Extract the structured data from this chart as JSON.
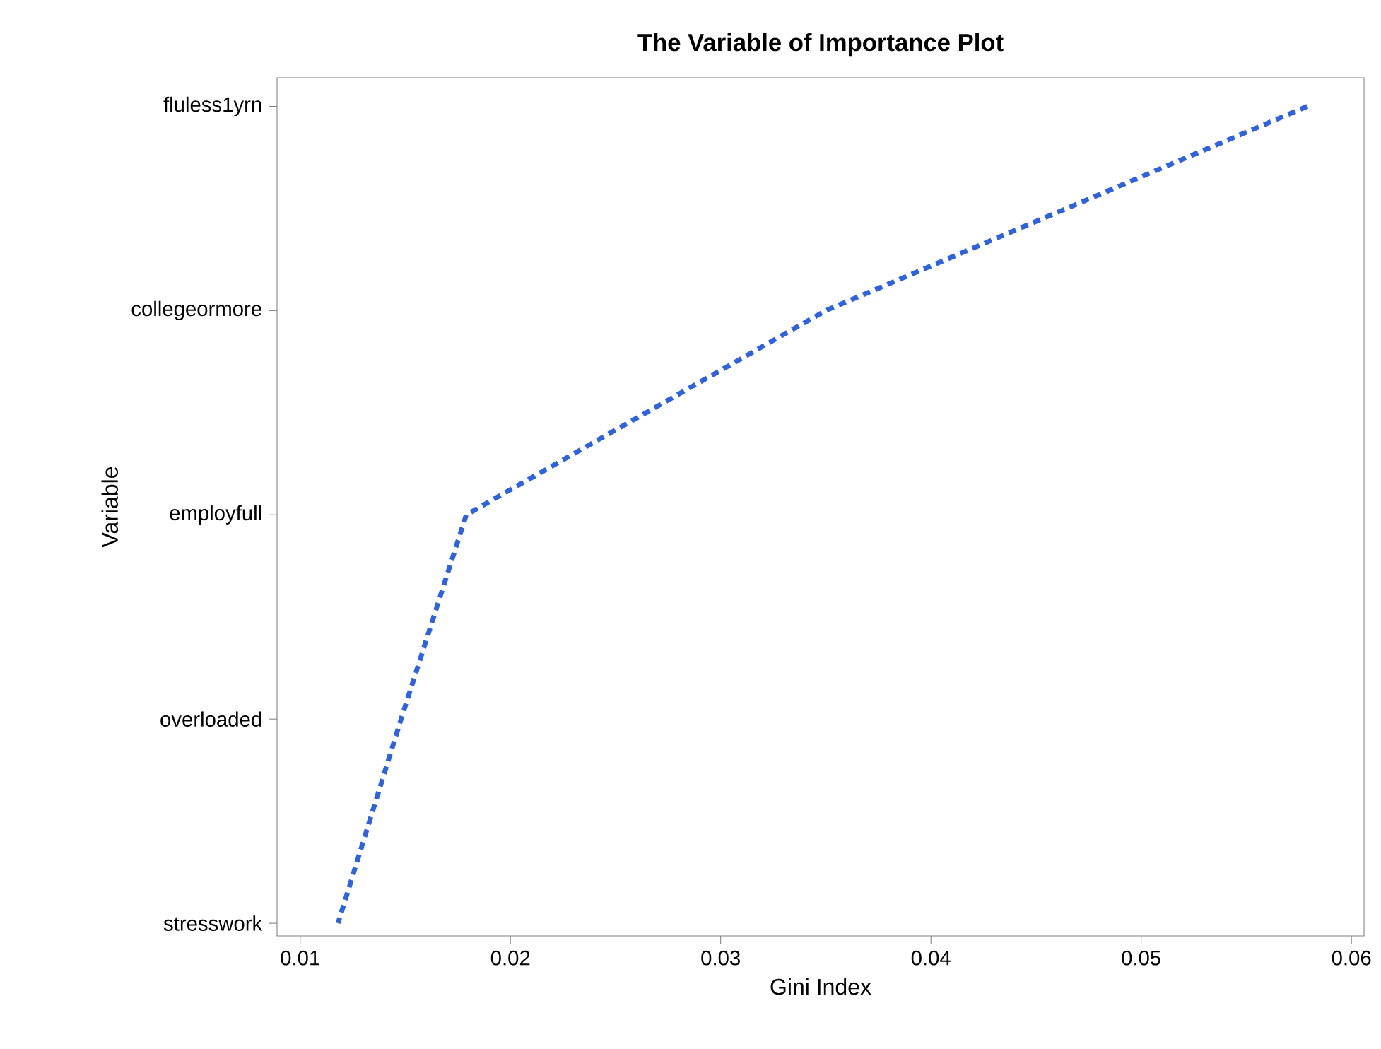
{
  "chart_data": {
    "type": "line",
    "title": "The Variable of Importance Plot",
    "xlabel": "Gini Index",
    "ylabel": "Variable",
    "orientation": "horizontal",
    "categories": [
      "fluless1yrn",
      "collegeormore",
      "employfull",
      "overloaded",
      "stresswork"
    ],
    "series": [
      {
        "color": "#2f62de",
        "values": [
          0.0579,
          0.035,
          0.0179,
          0.0148,
          0.0118
        ]
      }
    ],
    "xlim": [
      0.0089,
      0.0606
    ],
    "xticks": [
      0.01,
      0.02,
      0.03,
      0.04,
      0.05,
      0.06
    ],
    "line_style": "dashed",
    "marker": "none",
    "grid": false
  }
}
